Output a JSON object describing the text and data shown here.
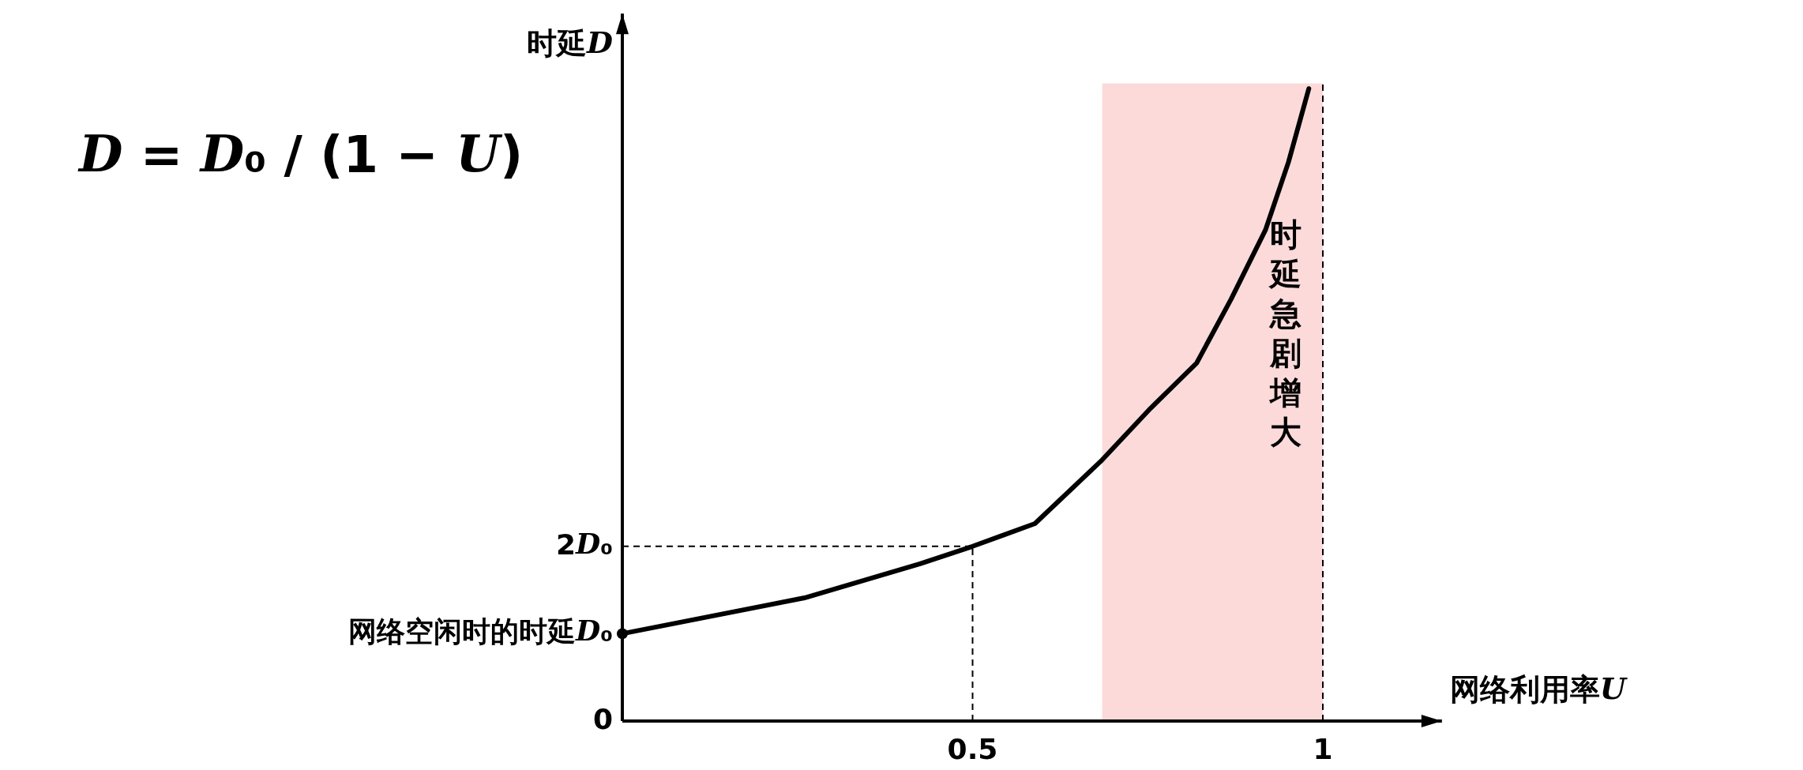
{
  "chart_data": {
    "type": "line",
    "xlabel": "网络利用率U",
    "ylabel": "时延D",
    "xlim": [
      0,
      1.17
    ],
    "ylim": [
      0,
      8.1
    ],
    "xticks": [
      {
        "value": 0.5,
        "label": "0.5"
      },
      1
    ],
    "yticks": [
      {
        "value": 0,
        "label": "0"
      },
      {
        "value": 1,
        "label": "网络空闲时的时延D₀"
      },
      {
        "value": 2,
        "label": "2D₀"
      }
    ],
    "series": [
      {
        "type": "line",
        "color": "#000000",
        "x": [
          0,
          0.26,
          0.425,
          0.5,
          0.589,
          0.685,
          0.754,
          0.82,
          0.869,
          0.918,
          0.951,
          0.98
        ],
        "values": [
          1,
          1.41,
          1.8,
          2,
          2.26,
          2.99,
          3.58,
          4.1,
          4.83,
          5.62,
          6.4,
          7.24
        ]
      },
      {
        "type": "scatter",
        "color": "#000000",
        "marker": "circle",
        "x": [
          0
        ],
        "values": [
          1
        ]
      }
    ],
    "ref_lines": [
      {
        "axis": "y",
        "value": 2,
        "line_style": "dashed",
        "color": "#000000"
      },
      {
        "axis": "x",
        "value": 0.5,
        "line_style": "dashed",
        "color": "#000000"
      },
      {
        "axis": "x",
        "value": 1,
        "line_style": "dashed",
        "color": "#000000"
      }
    ],
    "bands": [
      {
        "axis": "x",
        "from": 0.685,
        "to": 1,
        "label": "时延急剧增大",
        "color": "#fcdada"
      }
    ],
    "annotations": [
      "D = D₀ / (1 − U)"
    ],
    "grid": false
  }
}
